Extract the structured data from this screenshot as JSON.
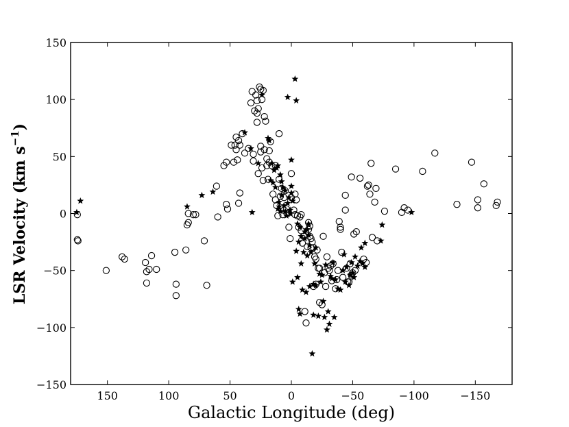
{
  "chart_data": {
    "type": "scatter",
    "xlabel": "Galactic Longitude (deg)",
    "ylabel": {
      "main": "LSR Velocity (km s",
      "superscript": "−1",
      "close": ")"
    },
    "xlim": [
      180,
      -180
    ],
    "ylim": [
      -150,
      150
    ],
    "x_ticks": [
      150,
      100,
      50,
      0,
      -50,
      -100,
      -150
    ],
    "x_tick_labels": [
      "150",
      "100",
      "50",
      "0",
      "−50",
      "−100",
      "−150"
    ],
    "y_ticks": [
      150,
      100,
      50,
      0,
      -50,
      -100,
      -150
    ],
    "y_tick_labels": [
      "150",
      "100",
      "50",
      "0",
      "−50",
      "−100",
      "−150"
    ],
    "grid": false,
    "series": [
      {
        "marker": "open-circle",
        "points": [
          [
            174.5,
            -1
          ],
          [
            174.5,
            -23
          ],
          [
            174,
            -24
          ],
          [
            151,
            -50
          ],
          [
            138,
            -38
          ],
          [
            136,
            -40
          ],
          [
            119,
            -43
          ],
          [
            118,
            -51
          ],
          [
            118,
            -61
          ],
          [
            116,
            -49
          ],
          [
            114,
            -37
          ],
          [
            110,
            -49
          ],
          [
            95,
            -34
          ],
          [
            94,
            -62
          ],
          [
            94,
            -72
          ],
          [
            86,
            -32
          ],
          [
            85,
            -10
          ],
          [
            84,
            -8
          ],
          [
            84,
            0
          ],
          [
            80,
            -1
          ],
          [
            78,
            -1
          ],
          [
            71,
            -24
          ],
          [
            69,
            -63
          ],
          [
            61,
            24
          ],
          [
            60,
            -3
          ],
          [
            55,
            42
          ],
          [
            53,
            8
          ],
          [
            53,
            45
          ],
          [
            52,
            4
          ],
          [
            49,
            60
          ],
          [
            47,
            45
          ],
          [
            46,
            60
          ],
          [
            45,
            67
          ],
          [
            45,
            56
          ],
          [
            44,
            47
          ],
          [
            43,
            64
          ],
          [
            43,
            9
          ],
          [
            42,
            18
          ],
          [
            42,
            60
          ],
          [
            40,
            70
          ],
          [
            38,
            53
          ],
          [
            35,
            57
          ],
          [
            33,
            97
          ],
          [
            32,
            107
          ],
          [
            31,
            52
          ],
          [
            31,
            46
          ],
          [
            30,
            90
          ],
          [
            29,
            104
          ],
          [
            28,
            88
          ],
          [
            28,
            99
          ],
          [
            28,
            80
          ],
          [
            27,
            92
          ],
          [
            27,
            35
          ],
          [
            26,
            111
          ],
          [
            25,
            109
          ],
          [
            25,
            59
          ],
          [
            25,
            54
          ],
          [
            24,
            40
          ],
          [
            24,
            100
          ],
          [
            23,
            108
          ],
          [
            23,
            29
          ],
          [
            22,
            56
          ],
          [
            22,
            85
          ],
          [
            21,
            81
          ],
          [
            20,
            48
          ],
          [
            20,
            42
          ],
          [
            19,
            30
          ],
          [
            18,
            55
          ],
          [
            18,
            45
          ],
          [
            17,
            63
          ],
          [
            16,
            42
          ],
          [
            15,
            17
          ],
          [
            13,
            42
          ],
          [
            13,
            12
          ],
          [
            12,
            7
          ],
          [
            11,
            -2
          ],
          [
            10,
            30
          ],
          [
            10,
            70
          ],
          [
            9,
            15
          ],
          [
            8,
            22
          ],
          [
            7,
            -1
          ],
          [
            6,
            14
          ],
          [
            6,
            3
          ],
          [
            5,
            20
          ],
          [
            4,
            4
          ],
          [
            3,
            0
          ],
          [
            2,
            -12
          ],
          [
            1,
            -22
          ],
          [
            0,
            35
          ],
          [
            0,
            14
          ],
          [
            -2,
            3
          ],
          [
            -3,
            -1
          ],
          [
            -3,
            17
          ],
          [
            -4,
            12
          ],
          [
            -5,
            -2
          ],
          [
            -6,
            -12
          ],
          [
            -7,
            -3
          ],
          [
            -8,
            -15
          ],
          [
            -8,
            -1
          ],
          [
            -9,
            -26
          ],
          [
            -10,
            -20
          ],
          [
            -11,
            -86
          ],
          [
            -12,
            -96
          ],
          [
            -13,
            -29
          ],
          [
            -14,
            -14
          ],
          [
            -14,
            -8
          ],
          [
            -15,
            -11
          ],
          [
            -15,
            -20
          ],
          [
            -16,
            -22
          ],
          [
            -16,
            -30
          ],
          [
            -17,
            -25
          ],
          [
            -18,
            -30
          ],
          [
            -18,
            -64
          ],
          [
            -19,
            -38
          ],
          [
            -20,
            -62
          ],
          [
            -20,
            -40
          ],
          [
            -21,
            -32
          ],
          [
            -22,
            -48
          ],
          [
            -23,
            -48
          ],
          [
            -23,
            -78
          ],
          [
            -25,
            -80
          ],
          [
            -26,
            -20
          ],
          [
            -27,
            -52
          ],
          [
            -28,
            -64
          ],
          [
            -29,
            -38
          ],
          [
            -30,
            -48
          ],
          [
            -31,
            -50
          ],
          [
            -32,
            -46
          ],
          [
            -33,
            -59
          ],
          [
            -34,
            -44
          ],
          [
            -36,
            -66
          ],
          [
            -37,
            -58
          ],
          [
            -38,
            -50
          ],
          [
            -39,
            -7
          ],
          [
            -40,
            -12
          ],
          [
            -40,
            -14
          ],
          [
            -41,
            -34
          ],
          [
            -42,
            -56
          ],
          [
            -44,
            16
          ],
          [
            -44,
            3
          ],
          [
            -45,
            -48
          ],
          [
            -46,
            -60
          ],
          [
            -47,
            -60
          ],
          [
            -48,
            -44
          ],
          [
            -49,
            -54
          ],
          [
            -49,
            32
          ],
          [
            -50,
            -52
          ],
          [
            -51,
            -18
          ],
          [
            -52,
            -50
          ],
          [
            -53,
            -16
          ],
          [
            -56,
            31
          ],
          [
            -59,
            -40
          ],
          [
            -61,
            -43
          ],
          [
            -62,
            24
          ],
          [
            -63,
            25
          ],
          [
            -64,
            17
          ],
          [
            -65,
            44
          ],
          [
            -66,
            -21
          ],
          [
            -68,
            10
          ],
          [
            -69,
            22
          ],
          [
            -70,
            -24
          ],
          [
            -76,
            2
          ],
          [
            -85,
            39
          ],
          [
            -90,
            1
          ],
          [
            -92,
            5
          ],
          [
            -95,
            3
          ],
          [
            -107,
            37
          ],
          [
            -117,
            53
          ],
          [
            -135,
            8
          ],
          [
            -147,
            45
          ],
          [
            -152,
            5
          ],
          [
            -152,
            12
          ],
          [
            -157,
            26
          ],
          [
            -167,
            7
          ],
          [
            -168,
            10
          ]
        ]
      },
      {
        "marker": "filled-star",
        "points": [
          [
            172,
            11
          ],
          [
            175,
            1
          ],
          [
            85,
            6
          ],
          [
            73,
            16
          ],
          [
            64,
            19
          ],
          [
            38,
            71
          ],
          [
            33,
            57
          ],
          [
            32,
            1
          ],
          [
            27,
            44
          ],
          [
            24,
            104
          ],
          [
            19,
            66
          ],
          [
            18,
            64
          ],
          [
            17,
            29
          ],
          [
            16,
            44
          ],
          [
            15,
            27
          ],
          [
            14,
            38
          ],
          [
            13,
            23
          ],
          [
            12,
            40
          ],
          [
            11,
            42
          ],
          [
            11,
            4
          ],
          [
            10,
            10
          ],
          [
            10,
            6
          ],
          [
            9,
            34
          ],
          [
            9,
            2
          ],
          [
            8,
            28
          ],
          [
            8,
            16
          ],
          [
            7,
            23
          ],
          [
            6,
            7
          ],
          [
            5,
            20
          ],
          [
            5,
            2
          ],
          [
            4,
            -2
          ],
          [
            3,
            102
          ],
          [
            3,
            9
          ],
          [
            2,
            14
          ],
          [
            1,
            3
          ],
          [
            1,
            0
          ],
          [
            0,
            47
          ],
          [
            0,
            24
          ],
          [
            0,
            18
          ],
          [
            -1,
            11
          ],
          [
            -1,
            -60
          ],
          [
            -3,
            118
          ],
          [
            -4,
            99
          ],
          [
            -4,
            -33
          ],
          [
            -5,
            -56
          ],
          [
            -5,
            -9
          ],
          [
            -6,
            -25
          ],
          [
            -6,
            -84
          ],
          [
            -7,
            -88
          ],
          [
            -7,
            -12
          ],
          [
            -8,
            -44
          ],
          [
            -8,
            -20
          ],
          [
            -9,
            -67
          ],
          [
            -10,
            -34
          ],
          [
            -11,
            -22
          ],
          [
            -11,
            -16
          ],
          [
            -12,
            -69
          ],
          [
            -13,
            -37
          ],
          [
            -13,
            -14
          ],
          [
            -14,
            -9
          ],
          [
            -14,
            -19
          ],
          [
            -15,
            -64
          ],
          [
            -15,
            -28
          ],
          [
            -16,
            -34
          ],
          [
            -17,
            -123
          ],
          [
            -18,
            -62
          ],
          [
            -18,
            -89
          ],
          [
            -19,
            -44
          ],
          [
            -20,
            -63
          ],
          [
            -20,
            -30
          ],
          [
            -22,
            -90
          ],
          [
            -23,
            -53
          ],
          [
            -24,
            -60
          ],
          [
            -25,
            -54
          ],
          [
            -26,
            -77
          ],
          [
            -27,
            -91
          ],
          [
            -28,
            -45
          ],
          [
            -29,
            -102
          ],
          [
            -30,
            -86
          ],
          [
            -31,
            -97
          ],
          [
            -32,
            -55
          ],
          [
            -33,
            -57
          ],
          [
            -34,
            -43
          ],
          [
            -35,
            -91
          ],
          [
            -36,
            -58
          ],
          [
            -38,
            -66
          ],
          [
            -40,
            -67
          ],
          [
            -42,
            -50
          ],
          [
            -43,
            -36
          ],
          [
            -44,
            -60
          ],
          [
            -45,
            -47
          ],
          [
            -47,
            -63
          ],
          [
            -48,
            -54
          ],
          [
            -49,
            -43
          ],
          [
            -50,
            -52
          ],
          [
            -51,
            -56
          ],
          [
            -52,
            -38
          ],
          [
            -54,
            -46
          ],
          [
            -56,
            -42
          ],
          [
            -57,
            -30
          ],
          [
            -58,
            -44
          ],
          [
            -60,
            -47
          ],
          [
            -60,
            -26
          ],
          [
            -73,
            -24
          ],
          [
            -74,
            -10
          ],
          [
            -98,
            1
          ]
        ]
      }
    ]
  }
}
